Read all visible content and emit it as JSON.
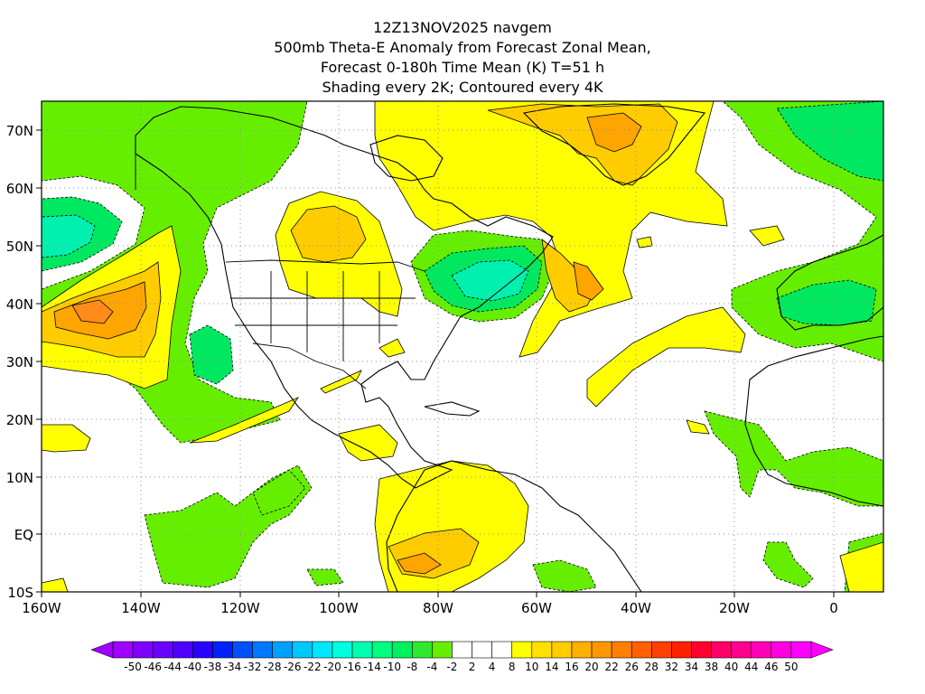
{
  "header": {
    "line1": "12Z13NOV2025 navgem",
    "line2": "500mb Theta-E Anomaly from Forecast Zonal Mean,",
    "line3": "Forecast 0-180h Time Mean (K) T=51 h",
    "line4": "Shading every 2K; Contoured every 4K"
  },
  "map": {
    "lat_labels": [
      "70N",
      "60N",
      "50N",
      "40N",
      "30N",
      "20N",
      "10N",
      "EQ",
      "10S"
    ],
    "lon_labels": [
      "160W",
      "140W",
      "120W",
      "100W",
      "80W",
      "60W",
      "40W",
      "20W",
      "0"
    ],
    "lon_range": [
      -160,
      10
    ],
    "lat_range": [
      -10,
      75
    ]
  },
  "colorbar": {
    "labels": [
      "-50",
      "-46",
      "-44",
      "-40",
      "-38",
      "-34",
      "-32",
      "-28",
      "-26",
      "-22",
      "-20",
      "-16",
      "-14",
      "-10",
      "-8",
      "-4",
      "-2",
      "2",
      "4",
      "8",
      "10",
      "14",
      "16",
      "20",
      "22",
      "26",
      "28",
      "32",
      "34",
      "38",
      "40",
      "44",
      "46",
      "50"
    ],
    "colors": [
      "#a000ff",
      "#8000ff",
      "#6a00ff",
      "#5000ff",
      "#2a00ff",
      "#0020ff",
      "#0050ff",
      "#0078ff",
      "#00a0ff",
      "#00c8ff",
      "#00e8ff",
      "#00ffe0",
      "#00ffb0",
      "#00ff80",
      "#00f060",
      "#30e830",
      "#66ee00",
      "#ffffff",
      "#ffffff",
      "#ffffff",
      "#ffff00",
      "#ffe000",
      "#ffcc00",
      "#ffb000",
      "#ff9800",
      "#ff8000",
      "#ff6000",
      "#ff4000",
      "#ff2000",
      "#ff0030",
      "#ff0066",
      "#ff0090",
      "#ff00b8",
      "#ff00e0",
      "#ff00ff"
    ]
  },
  "shading_colors": {
    "pos1": "#ffff00",
    "pos2": "#ffcc00",
    "pos3": "#ffa500",
    "pos4": "#ff8c1a",
    "neg1": "#66ee00",
    "neg2": "#00e860",
    "neg3": "#00f0b0"
  }
}
